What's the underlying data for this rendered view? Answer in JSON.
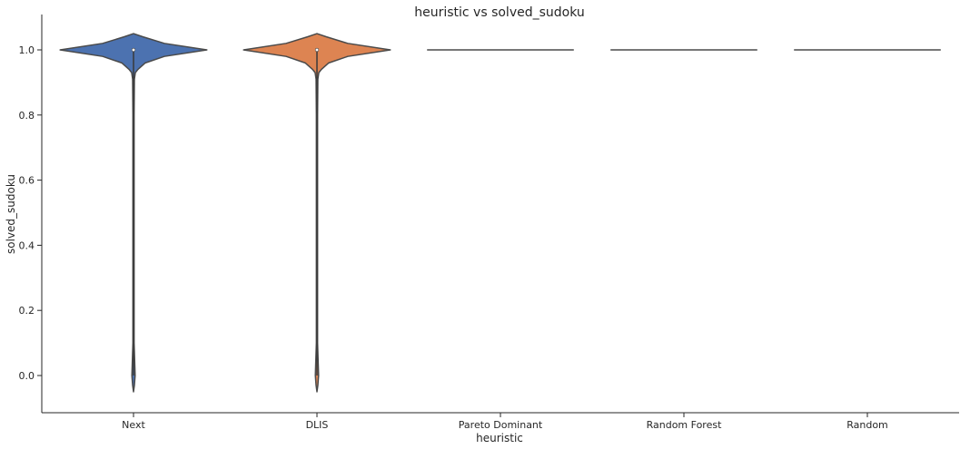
{
  "chart_data": {
    "type": "violin",
    "title": "heuristic vs solved_sudoku",
    "xlabel": "heuristic",
    "ylabel": "solved_sudoku",
    "categories": [
      "Next",
      "DLIS",
      "Pareto Dominant",
      "Random Forest",
      "Random"
    ],
    "yticks": [
      "0.0",
      "0.2",
      "0.4",
      "0.6",
      "0.8",
      "1.0"
    ],
    "ylim": [
      -0.11,
      1.11
    ],
    "grid": false,
    "series": [
      {
        "category": "Next",
        "color": "#4c72b0",
        "min": -0.05,
        "max": 1.05,
        "median": 1.0,
        "distribution": "bimodal-mostly-1"
      },
      {
        "category": "DLIS",
        "color": "#dd8452",
        "min": -0.05,
        "max": 1.05,
        "median": 1.0,
        "distribution": "bimodal-mostly-1"
      },
      {
        "category": "Pareto Dominant",
        "color": "#55a868",
        "min": 1.0,
        "max": 1.0,
        "median": 1.0,
        "distribution": "constant-1"
      },
      {
        "category": "Random Forest",
        "color": "#c44e52",
        "min": 1.0,
        "max": 1.0,
        "median": 1.0,
        "distribution": "constant-1"
      },
      {
        "category": "Random",
        "color": "#8172b3",
        "min": 1.0,
        "max": 1.0,
        "median": 1.0,
        "distribution": "constant-1"
      }
    ]
  }
}
